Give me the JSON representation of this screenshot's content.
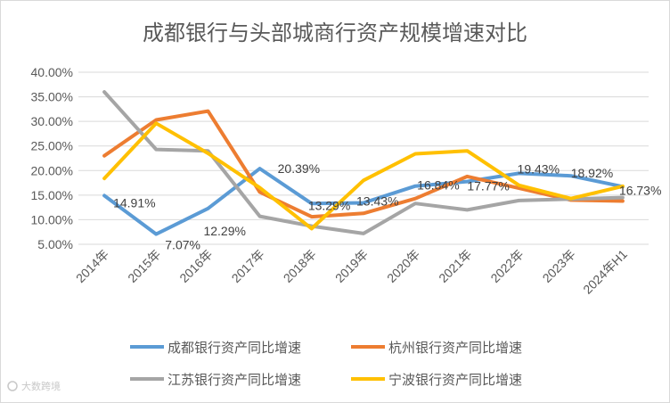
{
  "chart_data": {
    "type": "line",
    "title": "成都银行与头部城商行资产规模增速对比",
    "categories": [
      "2014年",
      "2015年",
      "2016年",
      "2017年",
      "2018年",
      "2019年",
      "2020年",
      "2021年",
      "2022年",
      "2023年",
      "2024年H1"
    ],
    "ylim": [
      5,
      40
    ],
    "ytick_labels": [
      "5.00%",
      "10.00%",
      "15.00%",
      "20.00%",
      "25.00%",
      "30.00%",
      "35.00%",
      "40.00%"
    ],
    "grid": true,
    "legend_position": "bottom",
    "series": [
      {
        "name": "成都银行资产同比增速",
        "color": "#5B9BD5",
        "values": [
          14.91,
          7.07,
          12.29,
          20.39,
          13.29,
          13.43,
          16.84,
          17.77,
          19.43,
          18.92,
          16.73
        ]
      },
      {
        "name": "杭州银行资产同比增速",
        "color": "#ED7D31",
        "values": [
          23.0,
          30.3,
          32.1,
          15.6,
          10.6,
          11.3,
          14.3,
          18.8,
          16.4,
          14.0,
          13.8
        ]
      },
      {
        "name": "江苏银行资产同比增速",
        "color": "#A5A5A5",
        "values": [
          36.0,
          24.3,
          24.0,
          10.7,
          8.7,
          7.2,
          13.3,
          12.0,
          13.9,
          14.2,
          14.5
        ]
      },
      {
        "name": "宁波银行资产同比增速",
        "color": "#FFC000",
        "values": [
          18.4,
          29.6,
          23.5,
          16.5,
          8.2,
          18.0,
          23.4,
          24.0,
          17.0,
          14.3,
          16.8
        ]
      }
    ],
    "data_labels": [
      {
        "series": 0,
        "index": 0,
        "text": "14.91%"
      },
      {
        "series": 0,
        "index": 1,
        "text": "7.07%"
      },
      {
        "series": 0,
        "index": 2,
        "text": "12.29%"
      },
      {
        "series": 0,
        "index": 3,
        "text": "20.39%"
      },
      {
        "series": 0,
        "index": 4,
        "text": "13.29%"
      },
      {
        "series": 0,
        "index": 5,
        "text": "13.43%"
      },
      {
        "series": 0,
        "index": 6,
        "text": "16.84%"
      },
      {
        "series": 0,
        "index": 7,
        "text": "17.77%"
      },
      {
        "series": 0,
        "index": 8,
        "text": "19.43%"
      },
      {
        "series": 0,
        "index": 9,
        "text": "18.92%"
      },
      {
        "series": 0,
        "index": 10,
        "text": "16.73%"
      }
    ]
  },
  "watermark": "大数跨境"
}
